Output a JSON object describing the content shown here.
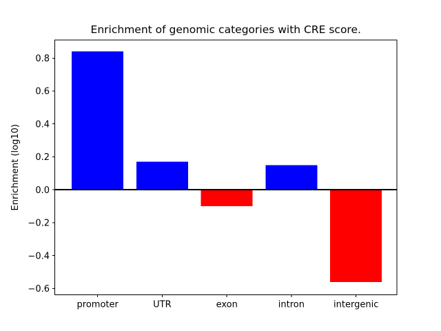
{
  "figure": {
    "background_color": "#ffffff",
    "axis_color": "#000000",
    "text_color": "#000000"
  },
  "chart_data": {
    "type": "bar",
    "title": "Enrichment of genomic categories with CRE score.",
    "xlabel": "",
    "ylabel": "Enrichment (log10)",
    "categories": [
      "promoter",
      "UTR",
      "exon",
      "intron",
      "intergenic"
    ],
    "values": [
      0.84,
      0.17,
      -0.1,
      0.15,
      -0.56
    ],
    "bar_colors": [
      "#0000ff",
      "#0000ff",
      "#ff0000",
      "#0000ff",
      "#ff0000"
    ],
    "positive_color": "#0000ff",
    "negative_color": "#ff0000",
    "ylim": [
      -0.638,
      0.91
    ],
    "yticks": [
      -0.6,
      -0.4,
      -0.2,
      0,
      0.2,
      0.4,
      0.6,
      0.8
    ],
    "ytick_labels": [
      "−0.6",
      "−0.4",
      "−0.2",
      "0.0",
      "0.2",
      "0.4",
      "0.6",
      "0.8"
    ],
    "zero_line": {
      "value": 0,
      "color": "#000000"
    },
    "grid": false,
    "legend": false
  }
}
